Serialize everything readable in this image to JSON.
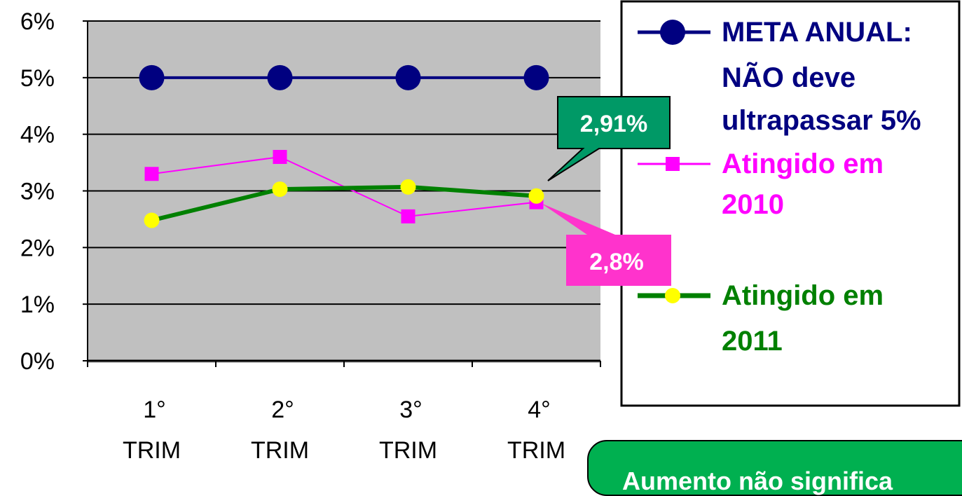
{
  "chart_data": {
    "type": "line",
    "categories": [
      "1° TRIM",
      "2° TRIM",
      "3° TRIM",
      "4° TRIM"
    ],
    "category_lines": [
      [
        "1°",
        "TRIM"
      ],
      [
        "2°",
        "TRIM"
      ],
      [
        "3°",
        "TRIM"
      ],
      [
        "4°",
        "TRIM"
      ]
    ],
    "y_ticks": [
      "0%",
      "1%",
      "2%",
      "3%",
      "4%",
      "5%",
      "6%"
    ],
    "ylim": [
      0,
      6
    ],
    "grid": true,
    "series": [
      {
        "name": "META ANUAL: NÃO deve ultrapassar 5%",
        "legend_lines": [
          "META ANUAL:",
          "NÃO deve",
          "ultrapassar 5%"
        ],
        "values": [
          5.0,
          5.0,
          5.0,
          5.0
        ],
        "color": "#000080",
        "marker": "circle"
      },
      {
        "name": "Atingido em 2010",
        "legend_lines": [
          "Atingido em",
          "2010"
        ],
        "values": [
          3.3,
          3.6,
          2.55,
          2.8
        ],
        "color": "#ff00ff",
        "marker": "square"
      },
      {
        "name": "Atingido em 2011",
        "legend_lines": [
          "Atingido em",
          "2011"
        ],
        "values": [
          2.48,
          3.03,
          3.07,
          2.91
        ],
        "color": "#008000",
        "marker": "circle-yellow"
      }
    ],
    "annotations": [
      {
        "text": "2,91%",
        "series": "Atingido em 2011",
        "point": 3,
        "color": "#009966"
      },
      {
        "text": "2,8%",
        "series": "Atingido em 2010",
        "point": 3,
        "color": "#ff33cc"
      }
    ]
  },
  "note": {
    "text": "Aumento não significa",
    "color": "#00b050"
  }
}
